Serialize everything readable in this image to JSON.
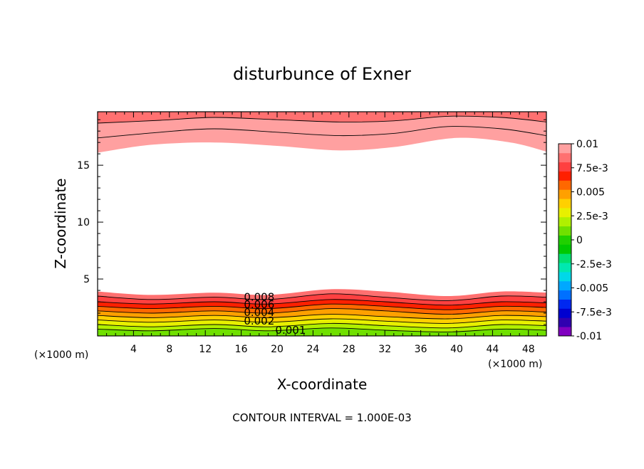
{
  "chart_data": {
    "type": "contour",
    "title": "disturbunce of Exner",
    "xlabel": "X-coordinate",
    "ylabel": "Z-coordinate",
    "x_unit": "(×1000 m)",
    "x_unit_right": "(×1000 m)",
    "xlim": [
      0,
      50
    ],
    "ylim": [
      0,
      19.7
    ],
    "x_ticks": [
      4,
      8,
      12,
      16,
      20,
      24,
      28,
      32,
      36,
      40,
      44,
      48
    ],
    "y_ticks": [
      5,
      10,
      15
    ],
    "footer": "CONTOUR INTERVAL = 1.000E-03",
    "contour_interval": 0.001,
    "colorbar": {
      "min": -0.01,
      "max": 0.01,
      "labels": [
        {
          "value": 0.01,
          "text": "0.01"
        },
        {
          "value": 0.0075,
          "text": "7.5e-3"
        },
        {
          "value": 0.005,
          "text": "0.005"
        },
        {
          "value": 0.0025,
          "text": "2.5e-3"
        },
        {
          "value": 0,
          "text": "0"
        },
        {
          "value": -0.0025,
          "text": "-2.5e-3"
        },
        {
          "value": -0.005,
          "text": "-0.005"
        },
        {
          "value": -0.0075,
          "text": "-7.5e-3"
        },
        {
          "value": -0.01,
          "text": "-0.01"
        }
      ],
      "colors": [
        "#8000c0",
        "#3000b0",
        "#0000d0",
        "#0028f0",
        "#0070ff",
        "#00a8ff",
        "#00d8e8",
        "#00e8b0",
        "#00e070",
        "#00c800",
        "#20d000",
        "#70e000",
        "#b0f000",
        "#e8f000",
        "#ffd000",
        "#ffa000",
        "#ff6800",
        "#ff2000",
        "#ff4040",
        "#ff7070",
        "#ffa0a0"
      ]
    },
    "contour_labels": [
      {
        "text": "0.008",
        "x": 18.0,
        "y": 3.1
      },
      {
        "text": "0.006",
        "x": 18.0,
        "y": 2.45
      },
      {
        "text": "0.004",
        "x": 18.0,
        "y": 1.75
      },
      {
        "text": "0.002",
        "x": 18.0,
        "y": 1.0
      },
      {
        "text": "0.001",
        "x": 21.5,
        "y": 0.2
      }
    ],
    "lower_band": {
      "surface_levels": [
        0.001,
        0.002,
        0.003,
        0.004,
        0.005,
        0.006,
        0.007,
        0.008,
        0.009
      ],
      "boundaries": [
        {
          "value": 0.0095,
          "points": [
            [
              0,
              3.9
            ],
            [
              6,
              3.6
            ],
            [
              13,
              3.8
            ],
            [
              19,
              3.6
            ],
            [
              26,
              4.1
            ],
            [
              32,
              3.9
            ],
            [
              39,
              3.5
            ],
            [
              45,
              3.9
            ],
            [
              50,
              3.8
            ]
          ]
        },
        {
          "value": 0.009,
          "points": [
            [
              0,
              3.5
            ],
            [
              6,
              3.2
            ],
            [
              13,
              3.4
            ],
            [
              19,
              3.2
            ],
            [
              26,
              3.7
            ],
            [
              32,
              3.4
            ],
            [
              39,
              3.1
            ],
            [
              45,
              3.5
            ],
            [
              50,
              3.4
            ]
          ]
        },
        {
          "value": 0.008,
          "points": [
            [
              0,
              3.0
            ],
            [
              6,
              2.8
            ],
            [
              13,
              3.0
            ],
            [
              19,
              2.8
            ],
            [
              26,
              3.2
            ],
            [
              32,
              3.0
            ],
            [
              39,
              2.7
            ],
            [
              45,
              3.0
            ],
            [
              50,
              2.9
            ]
          ]
        },
        {
          "value": 0.007,
          "points": [
            [
              0,
              2.6
            ],
            [
              6,
              2.4
            ],
            [
              13,
              2.6
            ],
            [
              19,
              2.4
            ],
            [
              26,
              2.8
            ],
            [
              32,
              2.6
            ],
            [
              39,
              2.3
            ],
            [
              45,
              2.6
            ],
            [
              50,
              2.5
            ]
          ]
        },
        {
          "value": 0.006,
          "points": [
            [
              0,
              2.2
            ],
            [
              6,
              2.0
            ],
            [
              13,
              2.2
            ],
            [
              19,
              2.0
            ],
            [
              26,
              2.4
            ],
            [
              32,
              2.2
            ],
            [
              39,
              1.9
            ],
            [
              45,
              2.2
            ],
            [
              50,
              2.1
            ]
          ]
        },
        {
          "value": 0.005,
          "points": [
            [
              0,
              1.8
            ],
            [
              6,
              1.6
            ],
            [
              13,
              1.8
            ],
            [
              19,
              1.6
            ],
            [
              26,
              1.9
            ],
            [
              32,
              1.7
            ],
            [
              39,
              1.5
            ],
            [
              45,
              1.8
            ],
            [
              50,
              1.7
            ]
          ]
        },
        {
          "value": 0.004,
          "points": [
            [
              0,
              1.4
            ],
            [
              6,
              1.2
            ],
            [
              13,
              1.4
            ],
            [
              19,
              1.2
            ],
            [
              26,
              1.5
            ],
            [
              32,
              1.3
            ],
            [
              39,
              1.1
            ],
            [
              45,
              1.4
            ],
            [
              50,
              1.3
            ]
          ]
        },
        {
          "value": 0.003,
          "points": [
            [
              0,
              1.0
            ],
            [
              6,
              0.8
            ],
            [
              13,
              1.0
            ],
            [
              19,
              0.8
            ],
            [
              26,
              1.1
            ],
            [
              32,
              0.9
            ],
            [
              39,
              0.7
            ],
            [
              45,
              1.0
            ],
            [
              50,
              0.9
            ]
          ]
        },
        {
          "value": 0.002,
          "points": [
            [
              0,
              0.6
            ],
            [
              6,
              0.45
            ],
            [
              13,
              0.65
            ],
            [
              19,
              0.45
            ],
            [
              26,
              0.7
            ],
            [
              32,
              0.5
            ],
            [
              39,
              0.35
            ],
            [
              45,
              0.6
            ],
            [
              50,
              0.5
            ]
          ]
        }
      ]
    },
    "upper_band": {
      "top_level": 0.0095,
      "boundaries": [
        {
          "value": 0.01,
          "points": [
            [
              0,
              16.1
            ],
            [
              6,
              16.8
            ],
            [
              13,
              17.0
            ],
            [
              20,
              16.7
            ],
            [
              27,
              16.3
            ],
            [
              33,
              16.6
            ],
            [
              40,
              17.4
            ],
            [
              46,
              17.0
            ],
            [
              50,
              16.2
            ]
          ]
        },
        {
          "value": 0.0095,
          "points": [
            [
              0,
              17.4
            ],
            [
              7,
              17.9
            ],
            [
              13,
              18.2
            ],
            [
              20,
              17.9
            ],
            [
              27,
              17.6
            ],
            [
              33,
              17.8
            ],
            [
              39,
              18.4
            ],
            [
              45,
              18.2
            ],
            [
              50,
              17.6
            ]
          ]
        },
        {
          "value": 0.009,
          "points": [
            [
              0,
              18.7
            ],
            [
              7,
              18.95
            ],
            [
              13,
              19.2
            ],
            [
              20,
              19.0
            ],
            [
              27,
              18.8
            ],
            [
              33,
              18.9
            ],
            [
              39,
              19.3
            ],
            [
              45,
              19.2
            ],
            [
              50,
              18.8
            ]
          ]
        }
      ]
    }
  }
}
